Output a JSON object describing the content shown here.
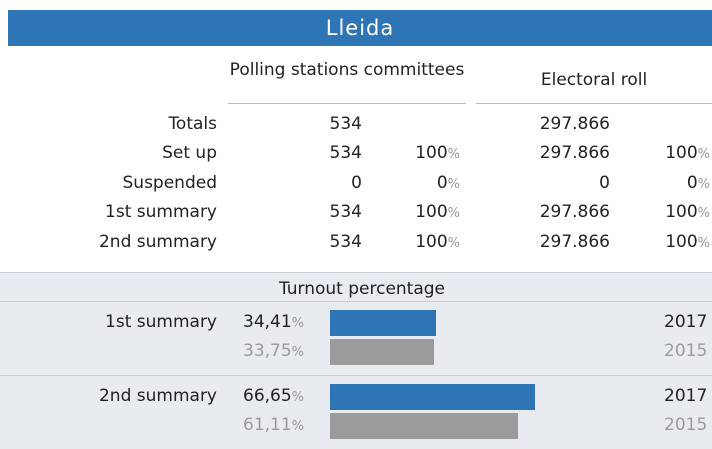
{
  "header": {
    "title": "Lleida"
  },
  "percent_sign": "%",
  "table": {
    "columns": [
      "Polling stations committees",
      "Electoral roll"
    ],
    "rows": [
      {
        "label": "Totals",
        "stations": "534",
        "roll": "297.866"
      },
      {
        "label": "Set up",
        "stations": "534",
        "stations_pct": "100",
        "roll": "297.866",
        "roll_pct": "100"
      },
      {
        "label": "Suspended",
        "stations": "0",
        "stations_pct": "0",
        "roll": "0",
        "roll_pct": "0"
      },
      {
        "label": "1st summary",
        "stations": "534",
        "stations_pct": "100",
        "roll": "297.866",
        "roll_pct": "100"
      },
      {
        "label": "2nd summary",
        "stations": "534",
        "stations_pct": "100",
        "roll": "297.866",
        "roll_pct": "100"
      }
    ]
  },
  "turnout": {
    "title": "Turnout percentage",
    "rows": [
      {
        "label": "1st summary",
        "series": [
          {
            "year": "2017",
            "color": "#2e75b6",
            "value": 34.41,
            "value_label": "34,41"
          },
          {
            "year": "2015",
            "color": "#9b9b9b",
            "value": 33.75,
            "value_label": "33,75"
          }
        ]
      },
      {
        "label": "2nd summary",
        "series": [
          {
            "year": "2017",
            "color": "#2e75b6",
            "value": 66.65,
            "value_label": "66,65"
          },
          {
            "year": "2015",
            "color": "#9b9b9b",
            "value": 61.11,
            "value_label": "61,11"
          }
        ]
      }
    ]
  }
}
